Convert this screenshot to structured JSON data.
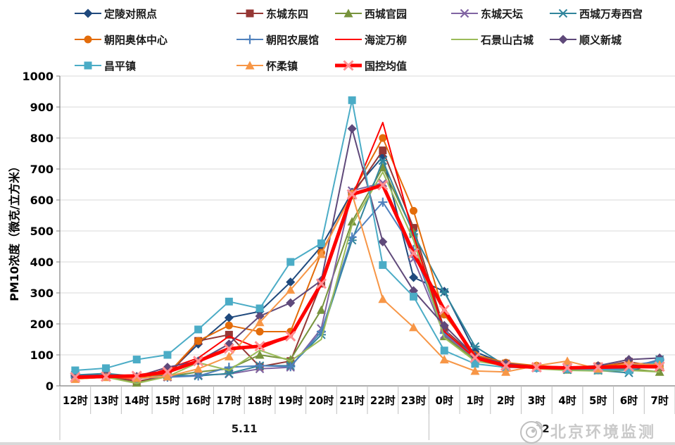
{
  "watermark": {
    "icon": "weibo-icon",
    "text": "北京环境监测"
  },
  "chart_data": {
    "type": "line",
    "title": "",
    "ylabel": "PM10浓度（微克/立方米）",
    "xlabel": "",
    "ylim": [
      0,
      1000
    ],
    "ytick_step": 100,
    "grid": true,
    "legend_position": "top",
    "categories": [
      "12时",
      "13时",
      "14时",
      "15时",
      "16时",
      "17时",
      "18时",
      "19时",
      "20时",
      "21时",
      "22时",
      "23时",
      "0时",
      "1时",
      "2时",
      "3时",
      "4时",
      "5时",
      "6时",
      "7时"
    ],
    "group_labels": [
      {
        "label": "5.11",
        "from": 0,
        "to": 12
      },
      {
        "label": "5.12",
        "from": 12,
        "to": 20
      }
    ],
    "series": [
      {
        "name": "定陵对照点",
        "color": "#1F497D",
        "marker": "diamond",
        "width": 2,
        "values": [
          30,
          33,
          28,
          38,
          135,
          220,
          240,
          335,
          450,
          625,
          740,
          350,
          305,
          110,
          70,
          62,
          58,
          60,
          65,
          80
        ]
      },
      {
        "name": "东城东四",
        "color": "#953735",
        "marker": "square",
        "width": 2,
        "values": [
          28,
          30,
          15,
          30,
          145,
          165,
          62,
          80,
          330,
          615,
          760,
          510,
          182,
          95,
          72,
          60,
          58,
          62,
          78,
          60
        ]
      },
      {
        "name": "西城官园",
        "color": "#77933C",
        "marker": "triangle",
        "width": 2,
        "values": [
          25,
          28,
          10,
          30,
          45,
          55,
          100,
          85,
          245,
          530,
          705,
          495,
          160,
          85,
          70,
          58,
          52,
          50,
          55,
          45
        ]
      },
      {
        "name": "东城天坛",
        "color": "#8064A2",
        "marker": "x",
        "width": 2,
        "values": [
          35,
          30,
          25,
          28,
          35,
          38,
          55,
          60,
          185,
          630,
          655,
          410,
          165,
          90,
          68,
          60,
          55,
          58,
          60,
          65
        ]
      },
      {
        "name": "西城万寿西宫",
        "color": "#31859C",
        "marker": "asterisk",
        "width": 2,
        "values": [
          35,
          40,
          30,
          35,
          32,
          40,
          65,
          65,
          165,
          470,
          727,
          490,
          302,
          127,
          65,
          58,
          52,
          50,
          42,
          85
        ]
      },
      {
        "name": "朝阳奥体中心",
        "color": "#E36C0A",
        "marker": "circle",
        "width": 2,
        "values": [
          30,
          35,
          28,
          38,
          145,
          195,
          175,
          175,
          430,
          620,
          800,
          565,
          230,
          100,
          75,
          65,
          60,
          65,
          72,
          70
        ]
      },
      {
        "name": "朝阳农展馆",
        "color": "#4F81BD",
        "marker": "plus",
        "width": 2,
        "values": [
          28,
          32,
          25,
          28,
          32,
          60,
          65,
          62,
          175,
          480,
          593,
          440,
          170,
          95,
          68,
          58,
          55,
          52,
          58,
          85
        ]
      },
      {
        "name": "海淀万柳",
        "color": "#FF0000",
        "marker": "none",
        "width": 2,
        "values": [
          25,
          30,
          22,
          55,
          90,
          160,
          120,
          160,
          330,
          610,
          850,
          485,
          175,
          90,
          70,
          60,
          55,
          58,
          60,
          58
        ]
      },
      {
        "name": "石景山古城",
        "color": "#9BBB59",
        "marker": "none",
        "width": 2,
        "values": [
          22,
          28,
          8,
          30,
          75,
          50,
          115,
          80,
          150,
          520,
          690,
          470,
          155,
          80,
          65,
          55,
          50,
          48,
          50,
          45
        ]
      },
      {
        "name": "顺义新城",
        "color": "#5F497A",
        "marker": "diamond",
        "width": 2,
        "values": [
          32,
          35,
          30,
          60,
          80,
          135,
          225,
          268,
          340,
          830,
          465,
          307,
          195,
          95,
          72,
          62,
          58,
          65,
          85,
          90
        ]
      },
      {
        "name": "昌平镇",
        "color": "#4BACC6",
        "marker": "square",
        "width": 2,
        "values": [
          50,
          57,
          85,
          100,
          182,
          272,
          250,
          400,
          460,
          922,
          390,
          288,
          114,
          71,
          60,
          58,
          55,
          52,
          50,
          80
        ]
      },
      {
        "name": "怀柔镇",
        "color": "#F79646",
        "marker": "triangle",
        "width": 2,
        "values": [
          22,
          28,
          25,
          30,
          55,
          95,
          205,
          310,
          425,
          620,
          280,
          189,
          85,
          48,
          45,
          65,
          80,
          55,
          72,
          68
        ]
      },
      {
        "name": "国控均值",
        "color": "#FF0000",
        "marker": "x",
        "marker_color": "#FF8F92",
        "width": 5,
        "values": [
          28,
          30,
          32,
          45,
          80,
          120,
          128,
          160,
          330,
          618,
          648,
          428,
          245,
          91,
          65,
          60,
          58,
          60,
          62,
          62
        ]
      }
    ]
  }
}
